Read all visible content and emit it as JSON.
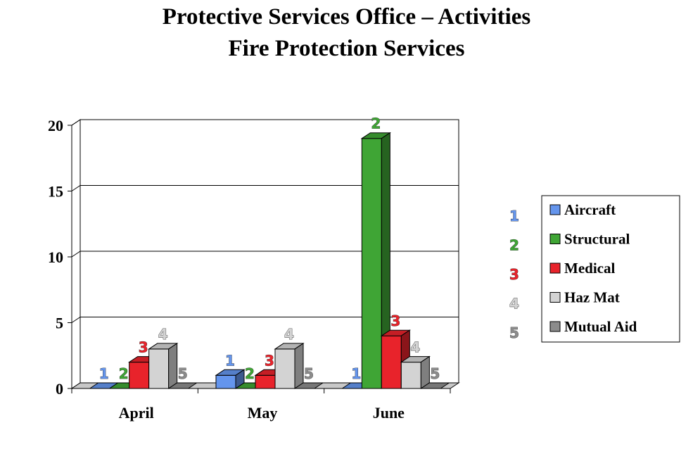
{
  "title_line1": "Protective Services Office – Activities",
  "title_line2": "Fire Protection Services",
  "chart_data": {
    "type": "bar",
    "style": "3d-clustered",
    "categories": [
      "April",
      "May",
      "June"
    ],
    "series": [
      {
        "name": "Aircraft",
        "label": "1",
        "color": "#6495ED",
        "values": [
          0,
          1,
          0
        ]
      },
      {
        "name": "Structural",
        "label": "2",
        "color": "#3FA535",
        "values": [
          0,
          0,
          19
        ]
      },
      {
        "name": "Medical",
        "label": "3",
        "color": "#E8232B",
        "values": [
          2,
          1,
          4
        ]
      },
      {
        "name": "Haz Mat",
        "label": "4",
        "color": "#D3D3D3",
        "values": [
          3,
          3,
          2
        ]
      },
      {
        "name": "Mutual Aid",
        "label": "5",
        "color": "#8C8C8C",
        "values": [
          0,
          0,
          0
        ]
      }
    ],
    "ylim": [
      0,
      20
    ],
    "yticks": [
      "0",
      "5",
      "10",
      "15",
      "20"
    ],
    "grid": true,
    "legend_position": "right"
  }
}
